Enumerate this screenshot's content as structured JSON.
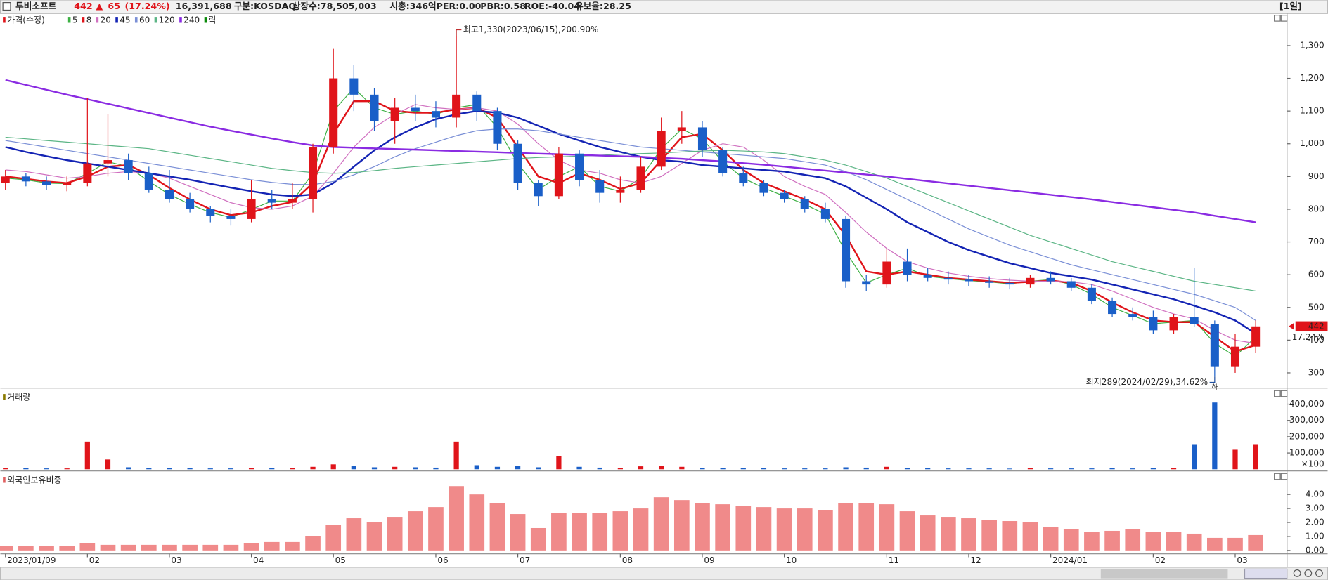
{
  "header": {
    "name": "투비소프트",
    "price": "442",
    "change_sign": "▲",
    "change": "65",
    "change_pct": "(17.24%)",
    "volume": "16,391,688",
    "market": "구분:KOSDAQ",
    "shares": "상장수:78,505,003",
    "cap": "시총:346억",
    "per": "PER:0.00",
    "pbr": "PBR:0.58",
    "roe": "ROE:-40.04",
    "reserve": "유보율:28.25",
    "period": "[1일]"
  },
  "chart_data": [
    {
      "type": "candlestick",
      "title": "가격(수정)",
      "title_color": "#e0141a",
      "categories": [
        "2023/01/09",
        null,
        null,
        null,
        "02",
        null,
        null,
        null,
        "03",
        null,
        null,
        null,
        "04",
        null,
        null,
        null,
        "05",
        null,
        null,
        null,
        null,
        "06",
        null,
        null,
        null,
        "07",
        null,
        null,
        null,
        null,
        "08",
        null,
        null,
        null,
        "09",
        null,
        null,
        null,
        "10",
        null,
        null,
        null,
        null,
        "11",
        null,
        null,
        null,
        "12",
        null,
        null,
        null,
        "2024/01",
        null,
        null,
        null,
        null,
        "02",
        null,
        null,
        null,
        "03",
        null
      ],
      "open": [
        880,
        900,
        885,
        875,
        880,
        940,
        950,
        910,
        860,
        830,
        800,
        780,
        770,
        830,
        820,
        830,
        990,
        1200,
        1150,
        1070,
        1110,
        1100,
        1080,
        1150,
        1100,
        1000,
        880,
        840,
        970,
        890,
        850,
        860,
        930,
        1040,
        1050,
        980,
        910,
        880,
        850,
        830,
        800,
        770,
        580,
        570,
        640,
        600,
        590,
        585,
        580,
        575,
        570,
        590,
        580,
        560,
        520,
        480,
        470,
        430,
        470,
        450,
        320,
        380
      ],
      "high": [
        920,
        910,
        900,
        900,
        1140,
        1090,
        970,
        930,
        920,
        850,
        810,
        800,
        890,
        860,
        880,
        1000,
        1290,
        1240,
        1170,
        1140,
        1150,
        1130,
        1330,
        1160,
        1110,
        1010,
        890,
        990,
        980,
        920,
        900,
        960,
        1080,
        1100,
        1070,
        990,
        930,
        890,
        860,
        840,
        820,
        780,
        600,
        680,
        680,
        620,
        610,
        600,
        595,
        590,
        600,
        610,
        590,
        570,
        530,
        500,
        490,
        480,
        620,
        460,
        420,
        460
      ],
      "low": [
        860,
        870,
        860,
        855,
        870,
        900,
        890,
        850,
        820,
        790,
        760,
        750,
        760,
        800,
        800,
        790,
        970,
        1100,
        1040,
        1000,
        1070,
        1050,
        1050,
        1070,
        980,
        860,
        810,
        830,
        870,
        820,
        820,
        850,
        920,
        1000,
        960,
        900,
        870,
        840,
        820,
        790,
        760,
        560,
        550,
        560,
        580,
        580,
        570,
        565,
        560,
        555,
        560,
        570,
        550,
        510,
        470,
        460,
        420,
        420,
        440,
        289,
        300,
        360
      ],
      "close": [
        900,
        885,
        875,
        880,
        940,
        950,
        910,
        860,
        830,
        800,
        780,
        770,
        830,
        820,
        830,
        990,
        1200,
        1150,
        1070,
        1110,
        1100,
        1080,
        1150,
        1100,
        1000,
        880,
        840,
        970,
        890,
        850,
        860,
        930,
        1040,
        1050,
        980,
        910,
        880,
        850,
        830,
        800,
        770,
        580,
        570,
        640,
        600,
        590,
        585,
        580,
        575,
        570,
        590,
        580,
        560,
        520,
        480,
        470,
        430,
        470,
        450,
        320,
        380,
        442
      ],
      "up_color": "#e0141a",
      "down_color": "#1a5fc8",
      "lines": [
        {
          "name": "5",
          "color": "#3cb043",
          "width": 1,
          "values": [
            895,
            890,
            880,
            878,
            910,
            945,
            930,
            885,
            845,
            815,
            790,
            775,
            800,
            825,
            825,
            910,
            1100,
            1170,
            1110,
            1090,
            1100,
            1090,
            1110,
            1120,
            1050,
            940,
            860,
            900,
            930,
            870,
            855,
            895,
            985,
            1045,
            1015,
            945,
            895,
            865,
            840,
            815,
            785,
            670,
            575,
            600,
            620,
            595,
            588,
            582,
            578,
            572,
            580,
            585,
            570,
            540,
            500,
            475,
            450,
            455,
            460,
            390,
            350,
            410
          ]
        },
        {
          "name": "8",
          "color": "#e0141a",
          "width": 2,
          "values": [
            900,
            893,
            885,
            880,
            900,
            930,
            935,
            905,
            865,
            830,
            800,
            782,
            790,
            810,
            822,
            880,
            1030,
            1130,
            1130,
            1100,
            1095,
            1095,
            1105,
            1110,
            1080,
            990,
            900,
            880,
            910,
            890,
            862,
            880,
            950,
            1020,
            1030,
            980,
            920,
            880,
            855,
            830,
            800,
            720,
            610,
            600,
            610,
            600,
            590,
            585,
            580,
            575,
            578,
            582,
            575,
            550,
            515,
            485,
            460,
            455,
            455,
            410,
            365,
            385
          ]
        },
        {
          "name": "20",
          "color": "#d070c0",
          "width": 1,
          "values": [
            920,
            915,
            905,
            895,
            900,
            910,
            915,
            910,
            895,
            870,
            845,
            820,
            805,
            800,
            810,
            840,
            910,
            990,
            1050,
            1090,
            1120,
            1110,
            1105,
            1110,
            1100,
            1060,
            1000,
            950,
            920,
            910,
            890,
            880,
            900,
            940,
            980,
            1000,
            990,
            950,
            900,
            870,
            845,
            790,
            730,
            680,
            640,
            620,
            605,
            595,
            588,
            583,
            580,
            580,
            578,
            570,
            550,
            525,
            500,
            480,
            465,
            430,
            400,
            390
          ]
        },
        {
          "name": "45",
          "color": "#1424b4",
          "width": 2,
          "values": [
            990,
            975,
            962,
            950,
            940,
            930,
            920,
            910,
            900,
            890,
            878,
            866,
            855,
            845,
            840,
            845,
            880,
            930,
            980,
            1020,
            1050,
            1075,
            1090,
            1100,
            1095,
            1080,
            1055,
            1030,
            1010,
            990,
            975,
            960,
            950,
            945,
            935,
            930,
            925,
            920,
            915,
            905,
            895,
            870,
            835,
            800,
            760,
            730,
            700,
            675,
            655,
            635,
            620,
            605,
            595,
            585,
            570,
            555,
            540,
            525,
            505,
            485,
            460,
            420
          ]
        },
        {
          "name": "60",
          "color": "#7a8fd6",
          "width": 1,
          "values": [
            1010,
            1000,
            990,
            980,
            970,
            960,
            950,
            940,
            930,
            920,
            910,
            900,
            890,
            882,
            876,
            875,
            885,
            905,
            930,
            960,
            985,
            1005,
            1025,
            1040,
            1045,
            1045,
            1040,
            1030,
            1020,
            1010,
            1000,
            990,
            985,
            980,
            975,
            970,
            965,
            960,
            955,
            945,
            935,
            915,
            890,
            860,
            830,
            800,
            770,
            740,
            715,
            690,
            670,
            650,
            630,
            615,
            600,
            585,
            570,
            555,
            540,
            520,
            500,
            460
          ]
        },
        {
          "name": "120",
          "color": "#5bb585",
          "width": 1,
          "values": [
            1020,
            1015,
            1010,
            1005,
            1000,
            995,
            990,
            985,
            975,
            965,
            955,
            945,
            935,
            925,
            918,
            912,
            910,
            912,
            918,
            925,
            930,
            935,
            940,
            945,
            950,
            955,
            958,
            960,
            962,
            965,
            968,
            970,
            972,
            975,
            978,
            980,
            978,
            975,
            970,
            960,
            950,
            935,
            915,
            895,
            870,
            845,
            820,
            795,
            770,
            745,
            720,
            700,
            680,
            660,
            640,
            625,
            610,
            595,
            580,
            570,
            560,
            550
          ]
        },
        {
          "name": "240",
          "color": "#8a2be2",
          "width": 2,
          "values": [
            1195,
            1180,
            1165,
            1150,
            1136,
            1122,
            1108,
            1094,
            1080,
            1066,
            1052,
            1040,
            1028,
            1016,
            1005,
            995,
            990,
            988,
            986,
            984,
            982,
            980,
            978,
            976,
            974,
            972,
            970,
            968,
            966,
            964,
            962,
            960,
            957,
            954,
            950,
            946,
            941,
            936,
            930,
            924,
            918,
            912,
            906,
            900,
            893,
            886,
            879,
            872,
            865,
            858,
            851,
            844,
            837,
            830,
            822,
            814,
            806,
            798,
            790,
            780,
            770,
            760
          ]
        }
      ],
      "extra_legend": {
        "name": "락",
        "color": "#0a8a0a"
      },
      "annotations": {
        "high": "최고1,330(2023/06/15),200.90%",
        "low": "최저289(2024/02/29),34.62%",
        "low_marker": "하"
      },
      "last_price": 442,
      "last_change": "17.24%",
      "ylim": [
        256,
        1398
      ],
      "yticks": [
        300,
        {
          "value": 400,
          "label": "400"
        },
        500,
        600,
        700,
        800,
        900,
        {
          "value": 1000,
          "label": "1,000"
        },
        {
          "value": 1100,
          "label": "1,100"
        },
        {
          "value": 1200,
          "label": "1,200"
        },
        {
          "value": 1300,
          "label": "1,300"
        }
      ]
    },
    {
      "type": "bar",
      "title": "거래량",
      "title_color": "#8a7a00",
      "values": [
        8000,
        6000,
        5000,
        5000,
        170000,
        60000,
        12000,
        8000,
        7000,
        6000,
        5000,
        5000,
        9000,
        7000,
        8000,
        15000,
        30000,
        20000,
        12000,
        15000,
        12000,
        10000,
        170000,
        25000,
        15000,
        20000,
        12000,
        80000,
        15000,
        10000,
        9000,
        18000,
        20000,
        15000,
        9000,
        8000,
        6000,
        6000,
        5000,
        5000,
        5000,
        12000,
        10000,
        15000,
        8000,
        6000,
        5000,
        5000,
        5000,
        4000,
        6000,
        5000,
        5000,
        5000,
        6000,
        5000,
        6000,
        8000,
        150000,
        410000,
        120000,
        150000
      ],
      "color_by": "candle",
      "y_unit": "×100",
      "ylim": [
        0,
        483000
      ],
      "yticks": [
        {
          "value": 100000,
          "label": "100,000"
        },
        {
          "value": 200000,
          "label": "200,000"
        },
        {
          "value": 300000,
          "label": "300,000"
        },
        {
          "value": 400000,
          "label": "400,000"
        }
      ]
    },
    {
      "type": "bar",
      "title": "외국인보유비중",
      "title_color": "#e06060",
      "color": "#f08a8a",
      "values": [
        0.3,
        0.3,
        0.3,
        0.3,
        0.5,
        0.4,
        0.4,
        0.4,
        0.4,
        0.4,
        0.4,
        0.4,
        0.5,
        0.6,
        0.6,
        1.0,
        1.8,
        2.3,
        2.0,
        2.4,
        2.8,
        3.1,
        4.6,
        4.0,
        3.4,
        2.6,
        1.6,
        2.7,
        2.7,
        2.7,
        2.8,
        3.0,
        3.8,
        3.6,
        3.4,
        3.3,
        3.2,
        3.1,
        3.0,
        3.0,
        2.9,
        3.4,
        3.4,
        3.3,
        2.8,
        2.5,
        2.4,
        2.3,
        2.2,
        2.1,
        2.0,
        1.7,
        1.5,
        1.3,
        1.4,
        1.5,
        1.3,
        1.3,
        1.2,
        0.9,
        0.9,
        1.1
      ],
      "ylim": [
        0,
        5.5
      ],
      "yticks": [
        {
          "value": 0,
          "label": "0.00"
        },
        {
          "value": 1,
          "label": "1.00"
        },
        {
          "value": 2,
          "label": "2.00"
        },
        {
          "value": 3,
          "label": "3.00"
        },
        {
          "value": 4,
          "label": "4.00"
        }
      ]
    }
  ]
}
